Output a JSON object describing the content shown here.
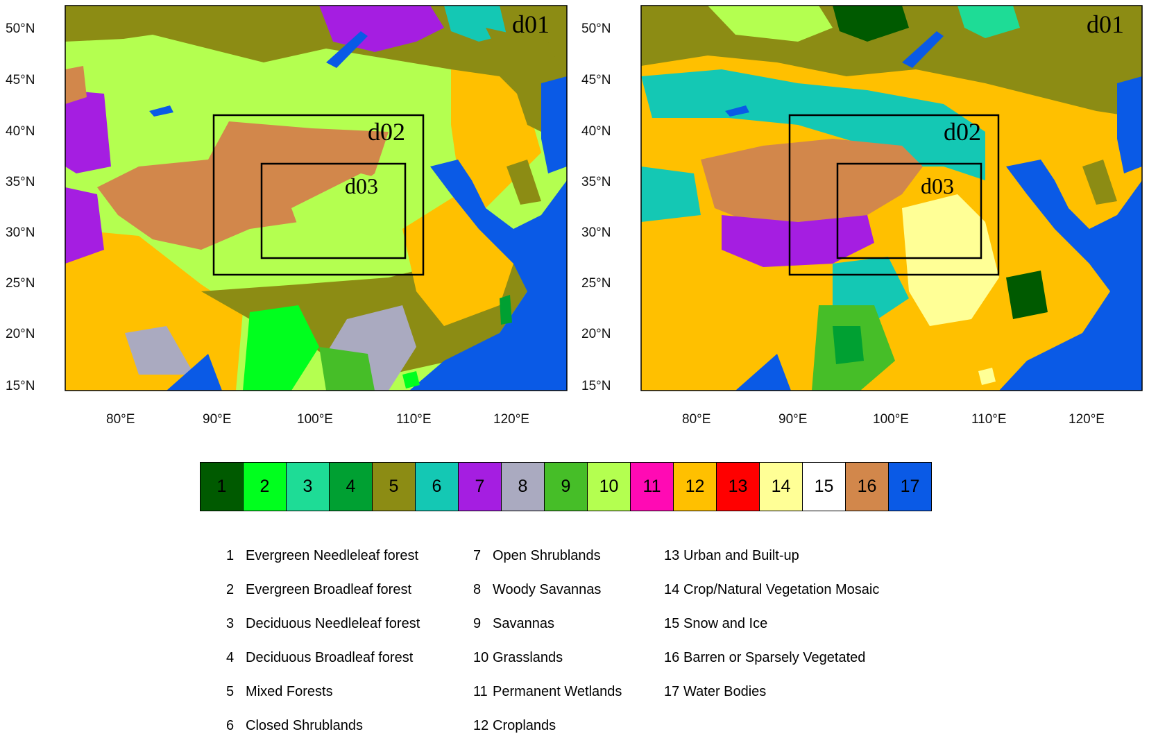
{
  "axes": {
    "lat_labels": [
      "50°N",
      "45°N",
      "40°N",
      "35°N",
      "30°N",
      "25°N",
      "20°N",
      "15°N"
    ],
    "lon_labels": [
      "80°E",
      "90°E",
      "100°E",
      "110°E",
      "120°E"
    ]
  },
  "panels": [
    {
      "domains": [
        "d01",
        "d02",
        "d03"
      ]
    },
    {
      "domains": [
        "d01",
        "d02",
        "d03"
      ]
    }
  ],
  "colorbar": [
    {
      "value": "1",
      "color": "#005a00",
      "text_color": "#000000"
    },
    {
      "value": "2",
      "color": "#00ff1e",
      "text_color": "#000000"
    },
    {
      "value": "3",
      "color": "#1edc96",
      "text_color": "#000000"
    },
    {
      "value": "4",
      "color": "#00a032",
      "text_color": "#000000"
    },
    {
      "value": "5",
      "color": "#8c8c14",
      "text_color": "#000000"
    },
    {
      "value": "6",
      "color": "#14c8b4",
      "text_color": "#000000"
    },
    {
      "value": "7",
      "color": "#a51ee1",
      "text_color": "#000000"
    },
    {
      "value": "8",
      "color": "#aaaac0",
      "text_color": "#000000"
    },
    {
      "value": "9",
      "color": "#46be28",
      "text_color": "#000000"
    },
    {
      "value": "10",
      "color": "#b4ff50",
      "text_color": "#000000"
    },
    {
      "value": "11",
      "color": "#ff0ab4",
      "text_color": "#000000"
    },
    {
      "value": "12",
      "color": "#ffc000",
      "text_color": "#000000"
    },
    {
      "value": "13",
      "color": "#ff0000",
      "text_color": "#000000"
    },
    {
      "value": "14",
      "color": "#ffff96",
      "text_color": "#000000"
    },
    {
      "value": "15",
      "color": "#ffffff",
      "text_color": "#000000"
    },
    {
      "value": "16",
      "color": "#d2874b",
      "text_color": "#000000"
    },
    {
      "value": "17",
      "color": "#0a5ae6",
      "text_color": "#000000"
    }
  ],
  "legend": {
    "col1": [
      {
        "num": "1",
        "label": "Evergreen Needleleaf forest"
      },
      {
        "num": "2",
        "label": "Evergreen Broadleaf forest"
      },
      {
        "num": "3",
        "label": "Deciduous Needleleaf forest"
      },
      {
        "num": "4",
        "label": "Deciduous Broadleaf forest"
      },
      {
        "num": "5",
        "label": "Mixed Forests"
      },
      {
        "num": "6",
        "label": "Closed Shrublands"
      }
    ],
    "col2": [
      {
        "num": "7",
        "label": "Open Shrublands"
      },
      {
        "num": "8",
        "label": "Woody Savannas"
      },
      {
        "num": "9",
        "label": "Savannas"
      },
      {
        "num": "10",
        "label": "Grasslands"
      },
      {
        "num": "11",
        "label": "Permanent Wetlands"
      },
      {
        "num": "12",
        "label": "Croplands"
      }
    ],
    "col3": [
      {
        "num": "13",
        "label": "Urban and Built-up"
      },
      {
        "num": "14",
        "label": "Crop/Natural Vegetation Mosaic"
      },
      {
        "num": "15",
        "label": "Snow and Ice"
      },
      {
        "num": "16",
        "label": "Barren or Sparsely Vegetated"
      },
      {
        "num": "17",
        "label": "Water Bodies"
      }
    ]
  }
}
